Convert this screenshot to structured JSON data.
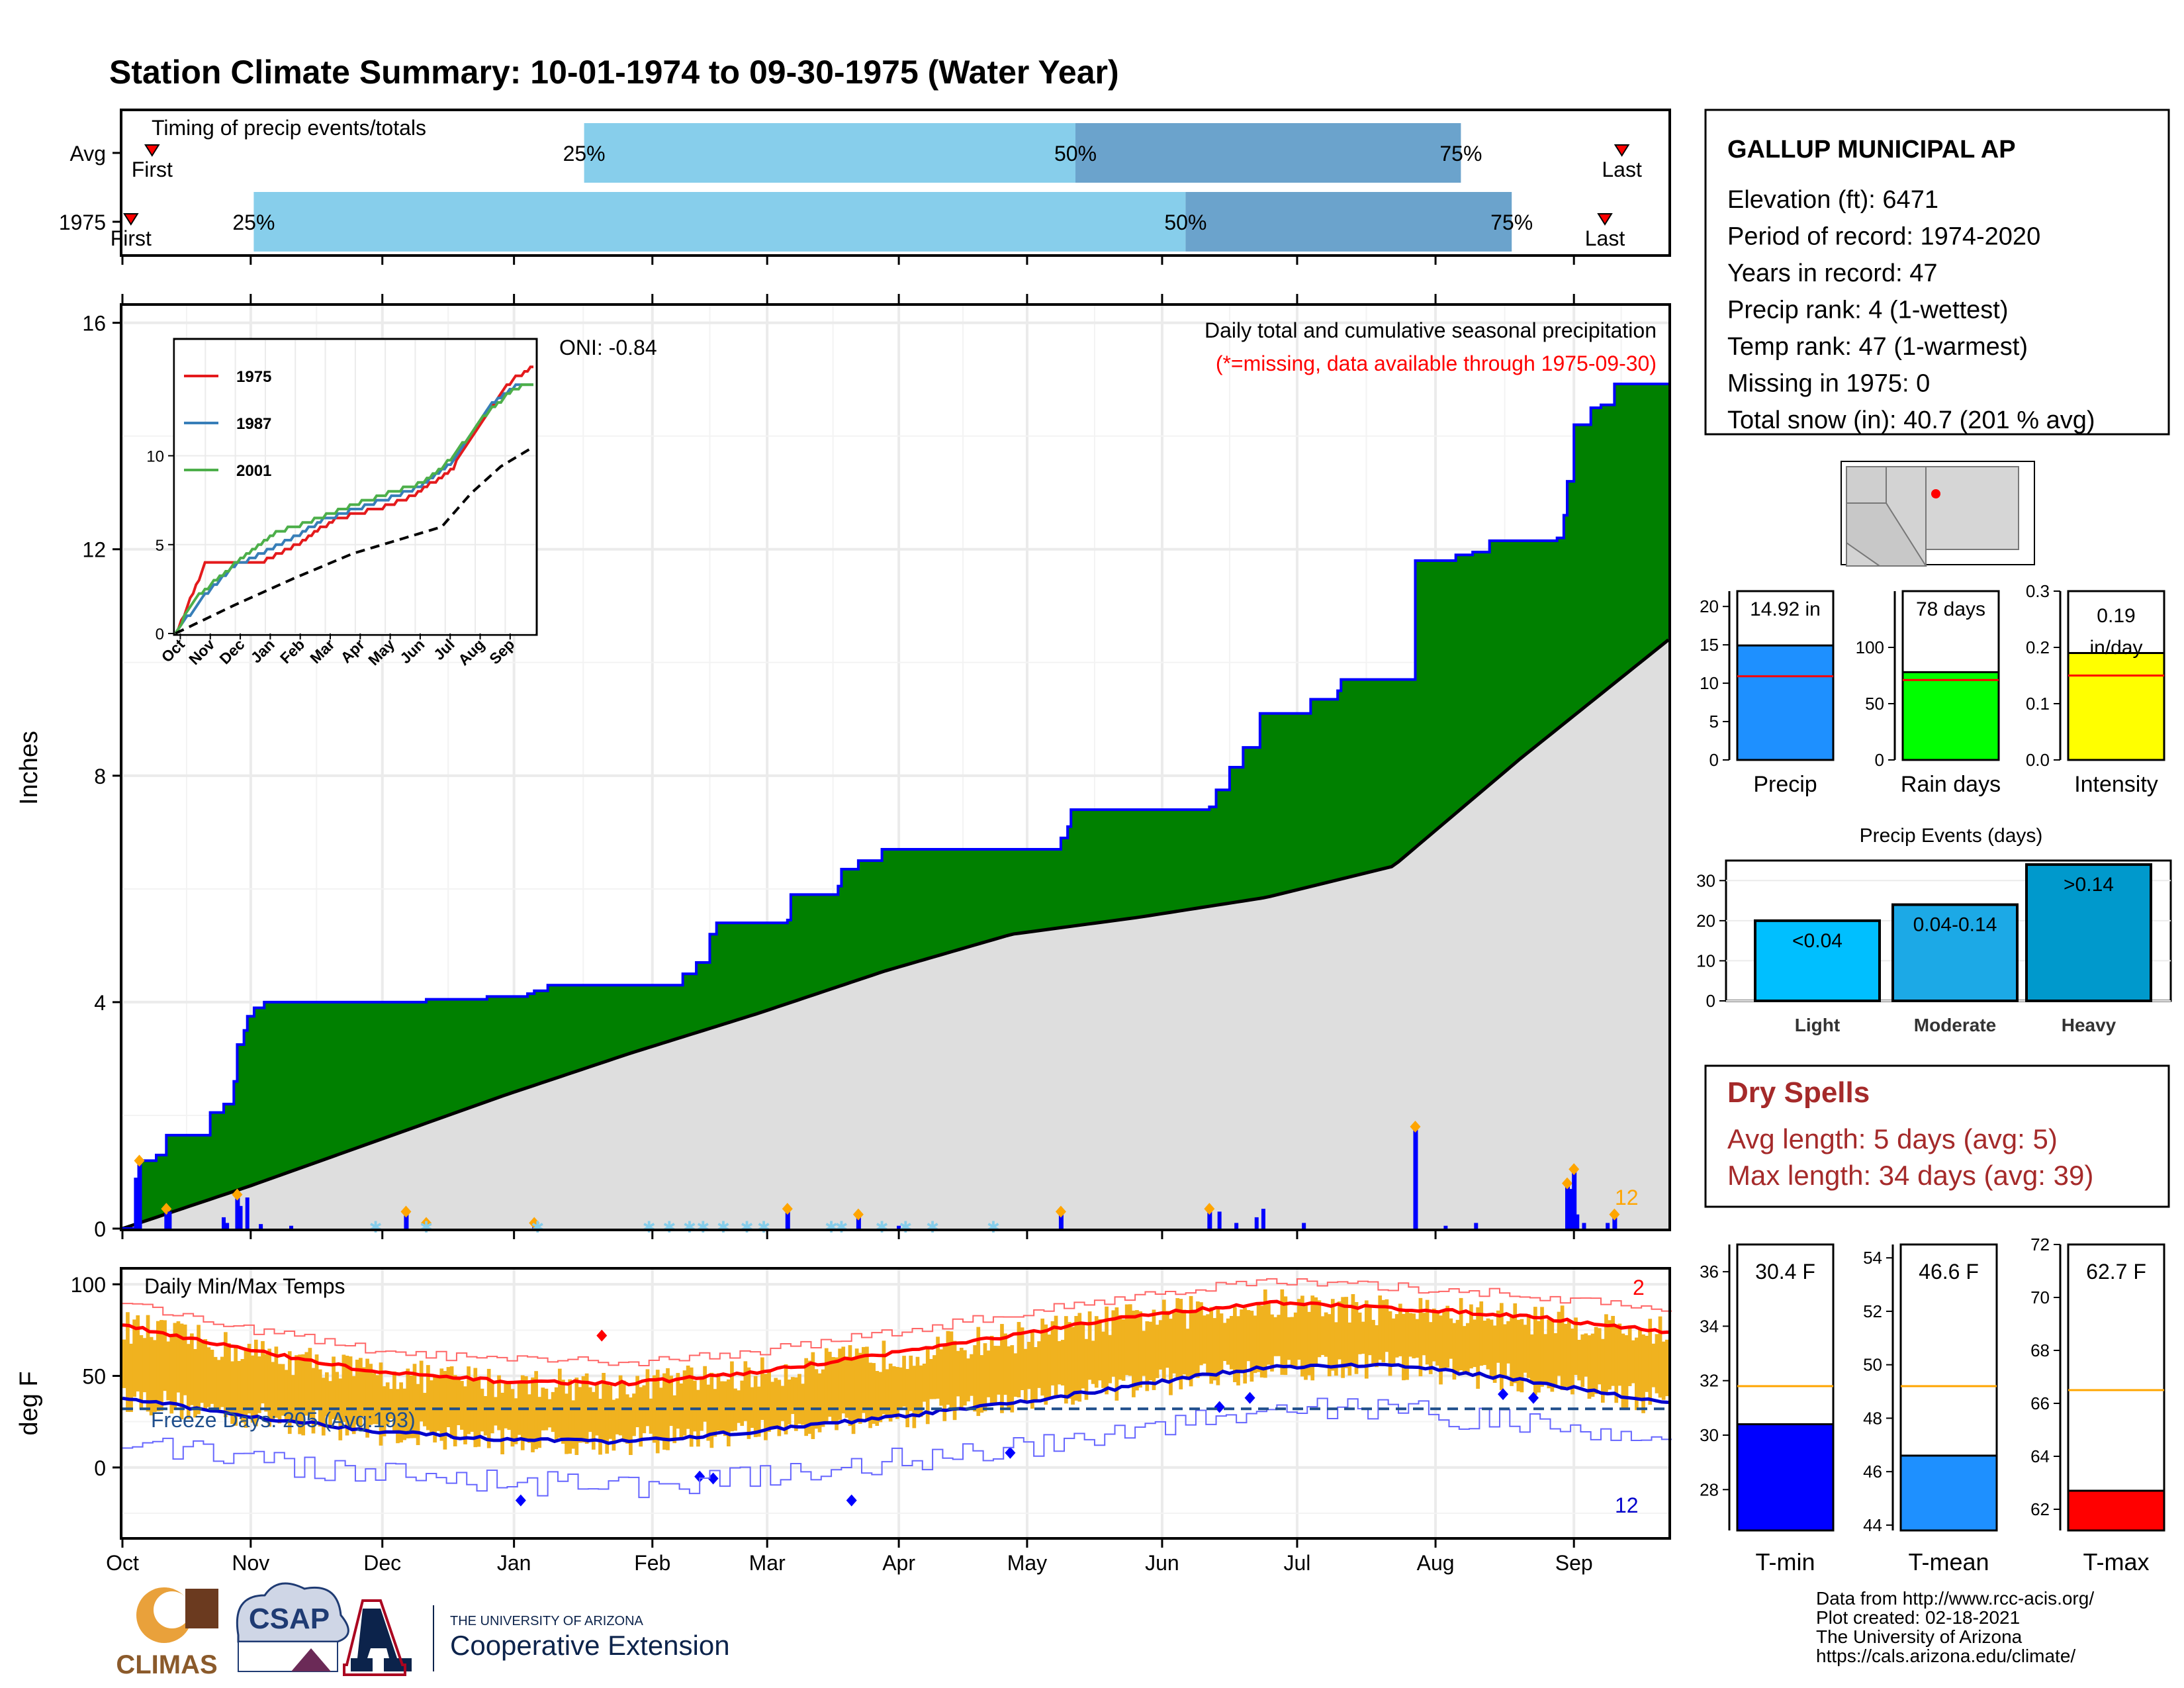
{
  "title": "Station Climate Summary: 10-01-1974 to 09-30-1975 (Water Year)",
  "colors": {
    "title": "#8b2500",
    "green": "#008000",
    "blue_line": "#0000ff",
    "gray_fill": "#dedede",
    "light_blue": "#87ceeb",
    "mid_blue": "#6ba3cc",
    "temp_bar": "#f0b21f",
    "red": "#ff0000",
    "dry_red": "#a52a2a"
  },
  "months": [
    "Oct",
    "Nov",
    "Dec",
    "Jan",
    "Feb",
    "Mar",
    "Apr",
    "May",
    "Jun",
    "Jul",
    "Aug",
    "Sep"
  ],
  "timing": {
    "label": "Timing of precip events/totals",
    "rows": [
      {
        "name": "Avg",
        "first_day": 7,
        "q25_day": 109,
        "q50_day": 225,
        "q75_day": 316,
        "last_day": 354,
        "q25": "25%",
        "q50": "50%",
        "q75": "75%",
        "first": "First",
        "last": "Last"
      },
      {
        "name": "1975",
        "first_day": 2,
        "q25_day": 31,
        "q50_day": 251,
        "q75_day": 328,
        "last_day": 350,
        "q25": "25%",
        "q50": "50%",
        "q75": "75%",
        "first": "First",
        "last": "Last"
      }
    ]
  },
  "precip_panel": {
    "ylabel": "Inches",
    "yticks": [
      0,
      4,
      8,
      12,
      16
    ],
    "ylim": [
      0,
      16.3
    ],
    "oni": "ONI: -0.84",
    "caption1": "Daily total and cumulative seasonal precipitation",
    "caption2": "(*=missing, data available through 1975-09-30)",
    "count_label": "12"
  },
  "temp_panel": {
    "ylabel": "deg F",
    "yticks": [
      0,
      50,
      100
    ],
    "ylim": [
      -38,
      108
    ],
    "label": "Daily Min/Max Temps",
    "freeze": "Freeze Days: 205 (Avg:193)",
    "freeze_line": 32,
    "count_top": "2",
    "count_bottom": "12"
  },
  "inset": {
    "yticks": [
      0,
      5,
      10
    ],
    "legend": [
      "1975",
      "1987",
      "2001"
    ],
    "legend_colors": [
      "#e41a1c",
      "#377eb8",
      "#4daf4a"
    ],
    "months": [
      "Oct",
      "Nov",
      "Dec",
      "Jan",
      "Feb",
      "Mar",
      "Apr",
      "May",
      "Jun",
      "Jul",
      "Aug",
      "Sep"
    ]
  },
  "station": {
    "name": "GALLUP MUNICIPAL AP",
    "lines": [
      "Elevation (ft): 6471",
      "Period of record: 1974-2020",
      "Years in record: 47",
      "Precip rank: 4 (1-wettest)",
      "Temp rank: 47 (1-warmest)",
      "Missing in 1975: 0",
      "Total snow (in): 40.7 (201 % avg)"
    ]
  },
  "summary_bars": [
    {
      "label": "Precip",
      "value_text": "14.92 in",
      "value": 14.92,
      "avg": 10.9,
      "ymax": 22,
      "yticks": [
        0,
        5,
        10,
        15,
        20
      ],
      "color": "#1e90ff"
    },
    {
      "label": "Rain days",
      "value_text": "78 days",
      "value": 78,
      "avg": 71,
      "ymax": 150,
      "yticks": [
        0,
        50,
        100
      ],
      "color": "#00ff00"
    },
    {
      "label": "Intensity",
      "value_text1": "0.19",
      "value_text2": "in/day",
      "value": 0.19,
      "avg": 0.15,
      "ymax": 0.3,
      "yticks": [
        "0.0",
        "0.1",
        "0.2",
        "0.3"
      ],
      "color": "#ffff00"
    }
  ],
  "events": {
    "title": "Precip Events (days)",
    "yticks": [
      0,
      10,
      20,
      30
    ],
    "ymax": 35,
    "bars": [
      {
        "label": "Light",
        "inner": "<0.04",
        "value": 20,
        "color": "#00bfff"
      },
      {
        "label": "Moderate",
        "inner": "0.04-0.14",
        "value": 24,
        "color": "#1ca9e6"
      },
      {
        "label": "Heavy",
        "inner": ">0.14",
        "value": 34,
        "color": "#0099cc"
      }
    ]
  },
  "dry_spells": {
    "title": "Dry Spells",
    "line1": "Avg length: 5 days (avg: 5)",
    "line2": "Max length: 34 days (avg: 39)"
  },
  "temp_bars": [
    {
      "label": "T-min",
      "value_text": "30.4 F",
      "value": 30.4,
      "avg": 31.8,
      "ymin": 26.5,
      "ymax": 37,
      "yticks": [
        28,
        30,
        32,
        34,
        36
      ],
      "color": "#0000ff"
    },
    {
      "label": "T-mean",
      "value_text": "46.6 F",
      "value": 46.6,
      "avg": 49.2,
      "ymin": 43.8,
      "ymax": 54.5,
      "yticks": [
        44,
        46,
        48,
        50,
        52,
        54
      ],
      "color": "#1e90ff"
    },
    {
      "label": "T-max",
      "value_text": "62.7 F",
      "value": 62.7,
      "avg": 66.5,
      "ymin": 61.2,
      "ymax": 72,
      "yticks": [
        62,
        64,
        66,
        68,
        70,
        72
      ],
      "color": "#ff0000"
    }
  ],
  "credits": [
    "Data from http://www.rcc-acis.org/",
    "Plot created: 02-18-2021",
    "The University of Arizona",
    "https://cals.arizona.edu/climate/"
  ],
  "logos": {
    "climas": "CLIMAS",
    "csap": "CSAP",
    "uofa_small": "THE UNIVERSITY OF ARIZONA",
    "coop": "Cooperative Extension"
  },
  "chart_data": {
    "type": "area",
    "title": "Station Climate Summary: 10-01-1974 to 09-30-1975 (Water Year)",
    "ylabel": "Inches",
    "ylim": [
      0,
      16
    ],
    "cumulative_1975": [
      [
        0,
        0
      ],
      [
        5,
        1.2
      ],
      [
        10,
        1.3
      ],
      [
        13,
        1.65
      ],
      [
        25,
        1.65
      ],
      [
        26,
        2.05
      ],
      [
        30,
        2.2
      ],
      [
        33,
        2.6
      ],
      [
        34,
        3.25
      ],
      [
        36,
        3.5
      ],
      [
        37,
        3.75
      ],
      [
        39,
        3.9
      ],
      [
        42,
        4.0
      ],
      [
        90,
        4.05
      ],
      [
        108,
        4.1
      ],
      [
        120,
        4.15
      ],
      [
        122,
        4.2
      ],
      [
        126,
        4.3
      ],
      [
        165,
        4.3
      ],
      [
        166,
        4.5
      ],
      [
        170,
        4.7
      ],
      [
        174,
        5.2
      ],
      [
        176,
        5.4
      ],
      [
        197,
        5.45
      ],
      [
        198,
        5.9
      ],
      [
        212,
        6.05
      ],
      [
        213,
        6.35
      ],
      [
        218,
        6.5
      ],
      [
        225,
        6.7
      ],
      [
        278,
        6.9
      ],
      [
        280,
        7.1
      ],
      [
        281,
        7.4
      ],
      [
        322,
        7.45
      ],
      [
        324,
        7.75
      ],
      [
        328,
        8.15
      ],
      [
        332,
        8.5
      ],
      [
        337,
        9.1
      ],
      [
        351,
        9.1
      ],
      [
        352,
        9.35
      ],
      [
        360,
        9.5
      ],
      [
        361,
        9.7
      ],
      [
        383,
        11.8
      ],
      [
        395,
        11.9
      ],
      [
        400,
        11.95
      ],
      [
        405,
        12.15
      ],
      [
        425,
        12.2
      ],
      [
        427,
        12.6
      ],
      [
        428,
        13.2
      ],
      [
        430,
        14.2
      ],
      [
        435,
        14.5
      ],
      [
        438,
        14.55
      ],
      [
        442,
        14.92
      ],
      [
        458,
        14.92
      ]
    ],
    "cumulative_avg": [
      [
        0,
        0
      ],
      [
        30,
        0.75
      ],
      [
        60,
        1.55
      ],
      [
        90,
        2.35
      ],
      [
        120,
        3.1
      ],
      [
        150,
        3.8
      ],
      [
        180,
        4.55
      ],
      [
        210,
        5.2
      ],
      [
        240,
        5.5
      ],
      [
        270,
        5.85
      ],
      [
        300,
        6.4
      ],
      [
        330,
        8.3
      ],
      [
        365,
        10.4
      ]
    ],
    "daily_precip_events": [
      [
        5,
        1.2
      ],
      [
        13,
        0.35
      ],
      [
        34,
        0.6
      ],
      [
        84,
        0.3
      ],
      [
        90,
        0.1
      ],
      [
        122,
        0.1
      ],
      [
        197,
        0.35
      ],
      [
        218,
        0.25
      ],
      [
        278,
        0.3
      ],
      [
        322,
        0.35
      ],
      [
        383,
        1.8
      ],
      [
        428,
        0.8
      ],
      [
        430,
        1.05
      ],
      [
        442,
        0.25
      ]
    ],
    "tmax_avg": [
      [
        0,
        78
      ],
      [
        30,
        64
      ],
      [
        60,
        52
      ],
      [
        90,
        47
      ],
      [
        120,
        46
      ],
      [
        150,
        52
      ],
      [
        180,
        62
      ],
      [
        210,
        72
      ],
      [
        240,
        83
      ],
      [
        270,
        90
      ],
      [
        300,
        87
      ],
      [
        330,
        83
      ],
      [
        365,
        74
      ]
    ],
    "tmin_avg": [
      [
        0,
        38
      ],
      [
        30,
        28
      ],
      [
        60,
        20
      ],
      [
        90,
        15
      ],
      [
        120,
        14
      ],
      [
        150,
        20
      ],
      [
        180,
        27
      ],
      [
        210,
        35
      ],
      [
        240,
        45
      ],
      [
        270,
        55
      ],
      [
        300,
        56
      ],
      [
        330,
        48
      ],
      [
        365,
        35
      ]
    ],
    "inset_series": [
      {
        "name": "1975",
        "points": [
          [
            0,
            0
          ],
          [
            10,
            1.2
          ],
          [
            30,
            3.9
          ],
          [
            90,
            4.1
          ],
          [
            130,
            5.2
          ],
          [
            160,
            6.4
          ],
          [
            210,
            7.1
          ],
          [
            240,
            7.7
          ],
          [
            280,
            9.2
          ],
          [
            310,
            11.8
          ],
          [
            340,
            14.2
          ],
          [
            360,
            14.9
          ]
        ]
      },
      {
        "name": "1987",
        "points": [
          [
            0,
            0
          ],
          [
            30,
            2.2
          ],
          [
            60,
            3.8
          ],
          [
            110,
            5.1
          ],
          [
            150,
            6.4
          ],
          [
            200,
            7.3
          ],
          [
            250,
            8.3
          ],
          [
            280,
            9.6
          ],
          [
            320,
            12.9
          ],
          [
            345,
            13.9
          ],
          [
            360,
            14.1
          ]
        ]
      },
      {
        "name": "2001",
        "points": [
          [
            0,
            0
          ],
          [
            20,
            2.0
          ],
          [
            60,
            3.9
          ],
          [
            100,
            5.6
          ],
          [
            150,
            6.6
          ],
          [
            200,
            7.6
          ],
          [
            250,
            8.5
          ],
          [
            280,
            9.8
          ],
          [
            310,
            12.1
          ],
          [
            340,
            13.6
          ],
          [
            360,
            14.1
          ]
        ]
      },
      {
        "name": "avg",
        "points": [
          [
            0,
            0
          ],
          [
            60,
            1.6
          ],
          [
            120,
            3.1
          ],
          [
            180,
            4.5
          ],
          [
            240,
            5.5
          ],
          [
            270,
            6.0
          ],
          [
            300,
            7.9
          ],
          [
            330,
            9.4
          ],
          [
            360,
            10.4
          ]
        ]
      }
    ]
  }
}
